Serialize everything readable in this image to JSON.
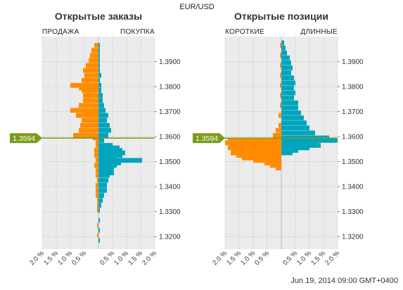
{
  "title": "EUR/USD",
  "timestamp": "Jun 19, 2014 09:00 GMT+0400",
  "colors": {
    "left_side": "#ff8c00",
    "right_side": "#00a5bd",
    "price_marker": "#7a9a1c",
    "plot_bg": "#ebebeb",
    "grid": "#bdbdbd"
  },
  "chart_data": [
    {
      "type": "bar",
      "title": "Открытые заказы",
      "left_label": "ПРОДАЖА",
      "right_label": "ПОКУПКА",
      "current_price": 1.3594,
      "current_price_label": "1.3594",
      "ylim": [
        1.315,
        1.4
      ],
      "yticks": [
        1.39,
        1.38,
        1.37,
        1.36,
        1.35,
        1.34,
        1.33,
        1.32
      ],
      "ytick_labels": [
        "1.3900",
        "1.3800",
        "1.3700",
        "1.3600",
        "1.3500",
        "1.3400",
        "1.3300",
        "1.3200"
      ],
      "xlim": [
        -2.0,
        2.0
      ],
      "xticks": [
        -2.0,
        -1.5,
        -1.0,
        -0.5,
        0.5,
        1.0,
        1.5,
        2.0
      ],
      "xtick_labels": [
        "2.0 %",
        "1.5 %",
        "1.0 %",
        "0.5 %",
        "0.5 %",
        "1.0 %",
        "1.5 %",
        "2.0 %"
      ],
      "series": [
        {
          "name": "ПРОДАЖА",
          "side": "left",
          "prices": [
            1.3965,
            1.3945,
            1.3925,
            1.3905,
            1.3885,
            1.3865,
            1.3845,
            1.3825,
            1.3805,
            1.3795,
            1.3785,
            1.3765,
            1.3745,
            1.3725,
            1.3705,
            1.3695,
            1.3685,
            1.3665,
            1.3645,
            1.3625,
            1.3605,
            1.3595,
            1.3585,
            1.3575,
            1.3565,
            1.3545,
            1.3525,
            1.3505,
            1.3485,
            1.3465,
            1.3445,
            1.3425,
            1.3405,
            1.3385,
            1.3365,
            1.3345,
            1.3325,
            1.3305,
            1.3245,
            1.3205
          ],
          "values": [
            0.15,
            0.25,
            0.3,
            0.35,
            0.45,
            0.55,
            0.5,
            0.6,
            1.0,
            0.7,
            0.6,
            0.55,
            0.55,
            0.7,
            1.0,
            0.5,
            0.8,
            0.6,
            0.65,
            0.7,
            0.9,
            0.2,
            0.1,
            0.1,
            0.1,
            0.15,
            0.15,
            0.1,
            0.15,
            0.1,
            0.1,
            0.05,
            0.1,
            0.1,
            0.1,
            0.05,
            0.05,
            0.05,
            0.05,
            0.05
          ]
        },
        {
          "name": "ПОКУПКА",
          "side": "right",
          "prices": [
            1.3965,
            1.3945,
            1.3925,
            1.3905,
            1.3885,
            1.3865,
            1.3845,
            1.3825,
            1.3805,
            1.3785,
            1.3765,
            1.3745,
            1.3725,
            1.3705,
            1.3685,
            1.3665,
            1.3645,
            1.3625,
            1.3605,
            1.3585,
            1.3565,
            1.3555,
            1.3545,
            1.3535,
            1.3525,
            1.3515,
            1.3505,
            1.3495,
            1.3485,
            1.3475,
            1.3465,
            1.3455,
            1.3445,
            1.3425,
            1.3405,
            1.3385,
            1.3365,
            1.3345,
            1.3325,
            1.3305,
            1.3265,
            1.3225,
            1.3185
          ],
          "values": [
            0.05,
            0.05,
            0.05,
            0.05,
            0.05,
            0.05,
            0.1,
            0.05,
            0.1,
            0.1,
            0.15,
            0.15,
            0.2,
            0.25,
            0.35,
            0.3,
            0.4,
            0.45,
            0.35,
            0.2,
            0.5,
            0.75,
            0.85,
            0.95,
            0.85,
            0.6,
            1.55,
            0.8,
            0.65,
            0.55,
            0.5,
            0.55,
            0.4,
            0.35,
            0.3,
            0.3,
            0.2,
            0.15,
            0.1,
            0.05,
            0.05,
            0.05,
            0.05
          ]
        }
      ]
    },
    {
      "type": "bar",
      "title": "Открытые позиции",
      "left_label": "КОРОТКИЕ",
      "right_label": "ДЛИННЫЕ",
      "current_price": 1.3594,
      "current_price_label": "1.3594",
      "ylim": [
        1.315,
        1.4
      ],
      "yticks": [
        1.39,
        1.38,
        1.37,
        1.36,
        1.35,
        1.34,
        1.33,
        1.32
      ],
      "ytick_labels": [
        "1.3900",
        "1.3800",
        "1.3700",
        "1.3600",
        "1.3500",
        "1.3400",
        "1.3300",
        "1.3200"
      ],
      "xlim": [
        -2.0,
        2.0
      ],
      "xticks": [
        -2.0,
        -1.5,
        -1.0,
        -0.5,
        0.5,
        1.0,
        1.5,
        2.0
      ],
      "xtick_labels": [
        "2.0 %",
        "1.5 %",
        "1.0 %",
        "0.5 %",
        "0.5 %",
        "1.0 %",
        "1.5 %",
        "2.0 %"
      ],
      "series": [
        {
          "name": "КОРОТКИЕ",
          "side": "left",
          "prices": [
            1.3965,
            1.3925,
            1.3885,
            1.3845,
            1.3805,
            1.3765,
            1.3725,
            1.3685,
            1.3645,
            1.3625,
            1.3605,
            1.3585,
            1.3575,
            1.3565,
            1.3555,
            1.3545,
            1.3535,
            1.3525,
            1.3515,
            1.3505,
            1.3495,
            1.3485,
            1.3475
          ],
          "values": [
            0.05,
            0.05,
            0.05,
            0.05,
            0.05,
            0.05,
            0.05,
            0.1,
            0.1,
            0.2,
            0.3,
            1.9,
            2.0,
            1.85,
            1.9,
            1.75,
            1.8,
            1.6,
            1.4,
            1.0,
            0.6,
            0.4,
            0.2
          ]
        },
        {
          "name": "ДЛИННЫЕ",
          "side": "right",
          "prices": [
            1.3975,
            1.3955,
            1.3935,
            1.3915,
            1.3895,
            1.3875,
            1.3855,
            1.3835,
            1.3815,
            1.3795,
            1.3775,
            1.3755,
            1.3735,
            1.3715,
            1.3695,
            1.3675,
            1.3655,
            1.3635,
            1.3615,
            1.3595,
            1.3585,
            1.3575,
            1.3565,
            1.3555,
            1.3545,
            1.3535
          ],
          "values": [
            0.1,
            0.15,
            0.2,
            0.3,
            0.35,
            0.4,
            0.35,
            0.45,
            0.5,
            0.45,
            0.5,
            0.45,
            0.6,
            0.6,
            0.7,
            0.8,
            0.9,
            1.0,
            1.2,
            1.7,
            2.0,
            1.3,
            1.4,
            1.0,
            0.6,
            0.4
          ]
        }
      ]
    }
  ]
}
